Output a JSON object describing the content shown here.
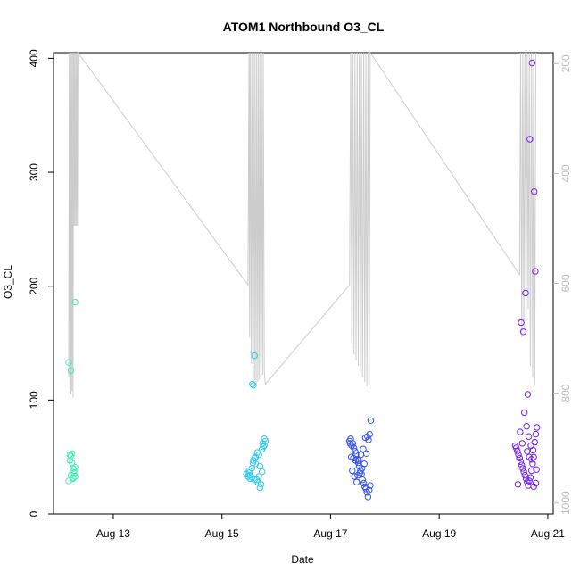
{
  "chart_data": {
    "type": "scatter",
    "title": "ATOM1 Northbound O3_CL",
    "xlabel": "Date",
    "ylabel": "O3_CL",
    "y2label": "",
    "x_unit": "days (Aug)",
    "xlim": [
      11.9,
      21.1
    ],
    "ylim": [
      0,
      405
    ],
    "y2lim": [
      1020,
      180
    ],
    "x_ticks": [
      {
        "value": 13,
        "label": "Aug 13"
      },
      {
        "value": 15,
        "label": "Aug 15"
      },
      {
        "value": 17,
        "label": "Aug 17"
      },
      {
        "value": 19,
        "label": "Aug 19"
      },
      {
        "value": 21,
        "label": "Aug 21"
      }
    ],
    "y_ticks": [
      {
        "value": 0,
        "label": "0"
      },
      {
        "value": 100,
        "label": "100"
      },
      {
        "value": 200,
        "label": "200"
      },
      {
        "value": 300,
        "label": "300"
      },
      {
        "value": 400,
        "label": "400"
      }
    ],
    "y2_ticks": [
      {
        "value": 200,
        "label": "200"
      },
      {
        "value": 400,
        "label": "400"
      },
      {
        "value": 600,
        "label": "600"
      },
      {
        "value": 800,
        "label": "800"
      },
      {
        "value": 1000,
        "label": "1000"
      }
    ],
    "grid": false,
    "colors": {
      "flight_aug12": "#40F0B0",
      "flight_aug15": "#30C8E8",
      "flight_aug17": "#3050E8",
      "flight_aug20": "#7020E8",
      "pressure_line": "#cccccc",
      "axis": "#000000"
    },
    "scatter_series": [
      {
        "color_key": "flight_aug12",
        "x": [
          12.18,
          12.2,
          12.22,
          12.24,
          12.26,
          12.28,
          12.3,
          12.18,
          12.22,
          12.26,
          12.28,
          12.3,
          12.24,
          12.2,
          12.22,
          12.3,
          12.26
        ],
        "y": [
          133,
          47,
          51,
          45,
          40,
          36,
          33,
          29,
          34,
          31,
          38,
          41,
          53,
          52,
          126,
          186,
          32
        ]
      },
      {
        "color_key": "flight_aug15",
        "x": [
          15.45,
          15.48,
          15.5,
          15.52,
          15.55,
          15.57,
          15.6,
          15.62,
          15.64,
          15.66,
          15.68,
          15.7,
          15.72,
          15.74,
          15.76,
          15.78,
          15.8,
          15.5,
          15.55,
          15.6,
          15.65,
          15.7,
          15.75,
          15.52,
          15.58,
          15.62,
          15.68,
          15.74,
          15.78,
          15.56,
          15.58,
          15.6
        ],
        "y": [
          35,
          33,
          38,
          31,
          40,
          45,
          49,
          44,
          30,
          28,
          33,
          23,
          26,
          37,
          59,
          66,
          64,
          36,
          32,
          30,
          54,
          42,
          62,
          34,
          47,
          50,
          52,
          57,
          60,
          114,
          113,
          139
        ],
        "note": ""
      },
      {
        "color_key": "flight_aug17",
        "x": [
          17.35,
          17.37,
          17.39,
          17.41,
          17.43,
          17.45,
          17.47,
          17.49,
          17.51,
          17.53,
          17.55,
          17.57,
          17.59,
          17.61,
          17.63,
          17.65,
          17.67,
          17.69,
          17.71,
          17.73,
          17.38,
          17.42,
          17.46,
          17.5,
          17.54,
          17.58,
          17.62,
          17.66,
          17.7,
          17.4,
          17.44,
          17.48,
          17.52,
          17.56,
          17.6,
          17.64,
          17.68,
          17.72,
          17.36,
          17.74
        ],
        "y": [
          64,
          66,
          60,
          62,
          58,
          55,
          52,
          48,
          45,
          42,
          38,
          35,
          30,
          27,
          24,
          22,
          19,
          15,
          21,
          25,
          50,
          49,
          47,
          34,
          36,
          40,
          44,
          53,
          65,
          38,
          33,
          28,
          47,
          52,
          57,
          67,
          68,
          70,
          62,
          82
        ]
      },
      {
        "color_key": "flight_aug20",
        "x": [
          20.4,
          20.42,
          20.44,
          20.46,
          20.48,
          20.5,
          20.52,
          20.54,
          20.56,
          20.58,
          20.6,
          20.62,
          20.64,
          20.66,
          20.68,
          20.7,
          20.72,
          20.74,
          20.76,
          20.78,
          20.8,
          20.45,
          20.49,
          20.53,
          20.57,
          20.61,
          20.65,
          20.69,
          20.73,
          20.77,
          20.51,
          20.55,
          20.59,
          20.63,
          20.67,
          20.71,
          20.75,
          20.79,
          20.62,
          20.66,
          20.7,
          20.74,
          20.78
        ],
        "y": [
          60,
          58,
          55,
          52,
          49,
          46,
          43,
          40,
          37,
          34,
          31,
          28,
          25,
          29,
          32,
          38,
          44,
          50,
          63,
          70,
          76,
          26,
          72,
          62,
          89,
          77,
          68,
          60,
          56,
          213,
          168,
          160,
          194,
          105,
          329,
          396,
          283,
          39,
          55,
          50,
          48,
          24,
          27
        ],
        "note": ""
      }
    ],
    "pressure_series": {
      "name": "",
      "x": [
        12.18,
        12.19,
        12.2,
        12.21,
        12.22,
        12.23,
        12.24,
        12.25,
        12.26,
        12.27,
        12.28,
        12.29,
        12.3,
        12.31,
        12.32,
        12.33,
        12.34,
        12.35,
        15.48,
        15.5,
        15.51,
        15.52,
        15.54,
        15.55,
        15.57,
        15.58,
        15.6,
        15.61,
        15.63,
        15.64,
        15.66,
        15.67,
        15.69,
        15.7,
        15.72,
        15.73,
        15.75,
        15.76,
        15.78,
        15.8,
        17.35,
        17.37,
        17.39,
        17.41,
        17.43,
        17.45,
        17.47,
        17.49,
        17.51,
        17.53,
        17.55,
        17.57,
        17.59,
        17.61,
        17.63,
        17.65,
        17.67,
        17.69,
        17.71,
        17.73,
        20.48,
        20.5,
        20.52,
        20.54,
        20.56,
        20.58,
        20.6,
        20.62,
        20.64,
        20.66,
        20.68,
        20.7,
        20.72,
        20.74,
        20.76,
        20.78
      ],
      "y": [
        120,
        405,
        110,
        405,
        105,
        405,
        108,
        405,
        102,
        405,
        253,
        405,
        253,
        405,
        253,
        405,
        253,
        405,
        201,
        405,
        155,
        405,
        132,
        405,
        128,
        405,
        112,
        405,
        114,
        405,
        116,
        405,
        118,
        405,
        120,
        405,
        122,
        405,
        125,
        114,
        201,
        405,
        150,
        405,
        140,
        405,
        135,
        405,
        130,
        405,
        125,
        405,
        120,
        405,
        116,
        405,
        112,
        405,
        110,
        405,
        210,
        405,
        155,
        405,
        162,
        405,
        170,
        405,
        180,
        405,
        130,
        405,
        120,
        405,
        113,
        405
      ]
    }
  }
}
